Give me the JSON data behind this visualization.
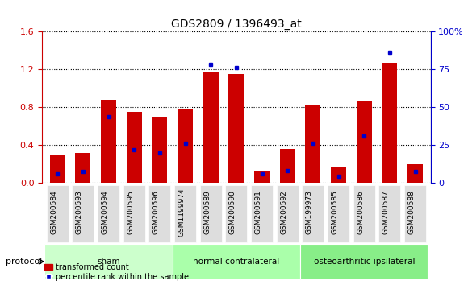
{
  "title": "GDS2809 / 1396493_at",
  "samples": [
    "GSM200584",
    "GSM200593",
    "GSM200594",
    "GSM200595",
    "GSM200596",
    "GSM1199974",
    "GSM200589",
    "GSM200590",
    "GSM200591",
    "GSM200592",
    "GSM199973",
    "GSM200585",
    "GSM200586",
    "GSM200587",
    "GSM200588"
  ],
  "red_values": [
    0.3,
    0.32,
    0.88,
    0.75,
    0.7,
    0.78,
    1.17,
    1.15,
    0.12,
    0.36,
    0.82,
    0.17,
    0.87,
    1.27,
    0.2
  ],
  "blue_percentile": [
    6.25,
    7.5,
    43.75,
    21.875,
    20.0,
    26.25,
    78.125,
    76.25,
    6.25,
    8.125,
    26.25,
    4.375,
    31.25,
    86.25,
    7.5
  ],
  "groups": [
    {
      "label": "sham",
      "start": 0,
      "end": 5,
      "color": "#ccffcc"
    },
    {
      "label": "normal contralateral",
      "start": 5,
      "end": 10,
      "color": "#aaffaa"
    },
    {
      "label": "osteoarthritic ipsilateral",
      "start": 10,
      "end": 15,
      "color": "#88ee88"
    }
  ],
  "ylim_left": [
    0,
    1.6
  ],
  "ylim_right": [
    0,
    100
  ],
  "yticks_left": [
    0,
    0.4,
    0.8,
    1.2,
    1.6
  ],
  "yticks_right": [
    0,
    25,
    50,
    75,
    100
  ],
  "red_color": "#cc0000",
  "blue_color": "#0000cc",
  "bar_width": 0.6,
  "protocol_label": "protocol"
}
